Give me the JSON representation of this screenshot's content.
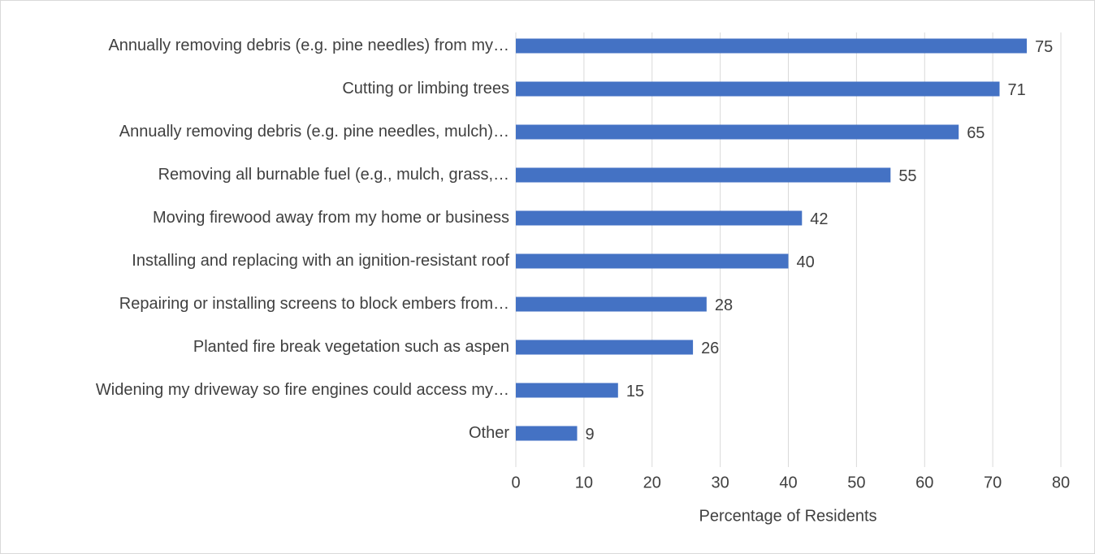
{
  "chart_data": {
    "type": "bar",
    "orientation": "horizontal",
    "categories": [
      "Annually removing debris (e.g. pine needles) from my…",
      "Cutting or limbing trees",
      "Annually removing debris (e.g. pine needles, mulch)…",
      "Removing all burnable fuel (e.g., mulch, grass,…",
      "Moving firewood away from my home or business",
      "Installing and replacing with an ignition-resistant roof",
      "Repairing or installing screens to block embers from…",
      "Planted fire break vegetation such as aspen",
      "Widening my driveway so fire engines could access my…",
      "Other"
    ],
    "values": [
      75,
      71,
      65,
      55,
      42,
      40,
      28,
      26,
      15,
      9
    ],
    "color": "#4472c4",
    "xlabel": "Percentage of Residents",
    "xlim": [
      0,
      80
    ],
    "xticks": [
      0,
      10,
      20,
      30,
      40,
      50,
      60,
      70,
      80
    ],
    "grid": true
  }
}
